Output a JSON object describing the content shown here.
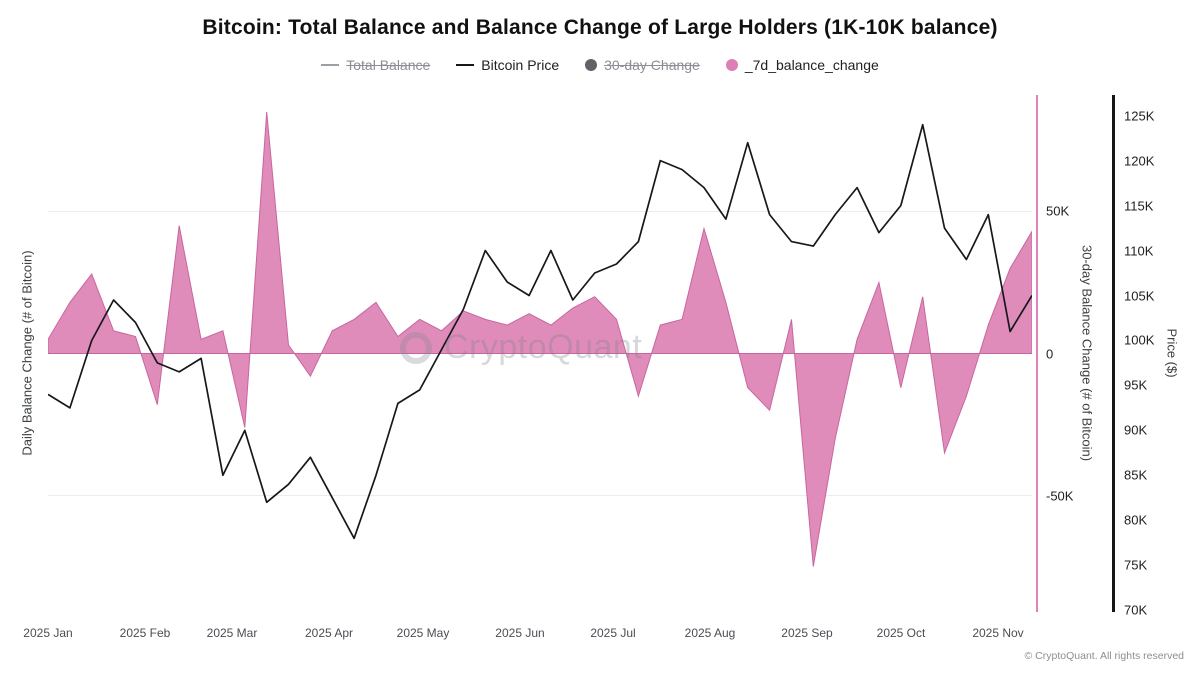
{
  "title": "Bitcoin: Total Balance and Balance Change of Large Holders (1K-10K balance)",
  "legend": [
    {
      "key": "total-balance",
      "label": "Total Balance",
      "type": "line",
      "color": "#9aa0a6",
      "disabled": true
    },
    {
      "key": "bitcoin-price",
      "label": "Bitcoin Price",
      "type": "line",
      "color": "#17181c",
      "disabled": false
    },
    {
      "key": "30-day-change",
      "label": "30-day Change",
      "type": "dot",
      "color": "#5f6368",
      "disabled": true
    },
    {
      "key": "7d-balance-change",
      "label": "_7d_balance_change",
      "type": "dot",
      "color": "#DC7FB4",
      "disabled": false
    }
  ],
  "watermark": "CryptoQuant",
  "footer": "© CryptoQuant. All rights reserved",
  "chart_data": {
    "type": "area+line",
    "title": "Bitcoin: Total Balance and Balance Change of Large Holders (1K-10K balance)",
    "left_axis_label": "Daily Balance Change (# of Bitcoin)",
    "total_days": 315,
    "x_ticks": [
      {
        "label": "2025 Jan",
        "day": 0
      },
      {
        "label": "2025 Feb",
        "day": 31
      },
      {
        "label": "2025 Mar",
        "day": 59
      },
      {
        "label": "2025 Apr",
        "day": 90
      },
      {
        "label": "2025 May",
        "day": 120
      },
      {
        "label": "2025 Jun",
        "day": 151
      },
      {
        "label": "2025 Jul",
        "day": 181
      },
      {
        "label": "2025 Aug",
        "day": 212
      },
      {
        "label": "2025 Sep",
        "day": 243
      },
      {
        "label": "2025 Oct",
        "day": 273
      },
      {
        "label": "2025 Nov",
        "day": 304
      }
    ],
    "x_days": [
      0,
      7,
      14,
      21,
      28,
      35,
      42,
      49,
      56,
      63,
      70,
      77,
      84,
      91,
      98,
      105,
      112,
      119,
      126,
      133,
      140,
      147,
      154,
      161,
      168,
      175,
      182,
      189,
      196,
      203,
      210,
      217,
      224,
      231,
      238,
      245,
      252,
      259,
      266,
      273,
      280,
      287,
      294,
      301,
      308,
      315
    ],
    "balance_axis": {
      "label": "30-day Balance Change (# of Bitcoin)",
      "range": [
        -91000,
        91000
      ],
      "gridline_values": [
        50000,
        0,
        -50000
      ],
      "ticks": [
        {
          "label": "50K",
          "value": 50000
        },
        {
          "label": "0",
          "value": 0
        },
        {
          "label": "-50K",
          "value": -50000
        }
      ]
    },
    "price_axis": {
      "label": "Price ($)",
      "range": [
        69800,
        127300
      ],
      "ticks": [
        {
          "label": "125K",
          "value": 125000
        },
        {
          "label": "120K",
          "value": 120000
        },
        {
          "label": "115K",
          "value": 115000
        },
        {
          "label": "110K",
          "value": 110000
        },
        {
          "label": "105K",
          "value": 105000
        },
        {
          "label": "100K",
          "value": 100000
        },
        {
          "label": "95K",
          "value": 95000
        },
        {
          "label": "90K",
          "value": 90000
        },
        {
          "label": "85K",
          "value": 85000
        },
        {
          "label": "80K",
          "value": 80000
        },
        {
          "label": "75K",
          "value": 75000
        },
        {
          "label": "70K",
          "value": 70000
        }
      ]
    },
    "series": [
      {
        "name": "_7d_balance_change",
        "type": "area",
        "axis": "balance",
        "color": "#DC7FB4",
        "stroke": "#C9659E",
        "values": [
          5000,
          18000,
          28000,
          8000,
          6000,
          -18000,
          45000,
          5000,
          8000,
          -26000,
          85000,
          3000,
          -8000,
          8000,
          12000,
          18000,
          6000,
          12000,
          8000,
          15000,
          12000,
          10000,
          14000,
          10000,
          16000,
          20000,
          12000,
          -15000,
          10000,
          12000,
          44000,
          18000,
          -12000,
          -20000,
          12000,
          -75000,
          -30000,
          5000,
          25000,
          -12000,
          20000,
          -35000,
          -15000,
          10000,
          30000,
          43000
        ]
      },
      {
        "name": "Bitcoin Price",
        "type": "line",
        "axis": "price",
        "color": "#17181c",
        "values": [
          94000,
          92500,
          100000,
          104500,
          102000,
          97500,
          96500,
          98000,
          85000,
          90000,
          82000,
          84000,
          87000,
          82500,
          78000,
          85000,
          93000,
          94500,
          99000,
          103500,
          110000,
          106500,
          105000,
          110000,
          104500,
          107500,
          108500,
          111000,
          120000,
          119000,
          117000,
          113500,
          122000,
          114000,
          111000,
          110500,
          114000,
          117000,
          112000,
          115000,
          124000,
          112500,
          109000,
          114000,
          101000,
          105000
        ]
      }
    ]
  }
}
